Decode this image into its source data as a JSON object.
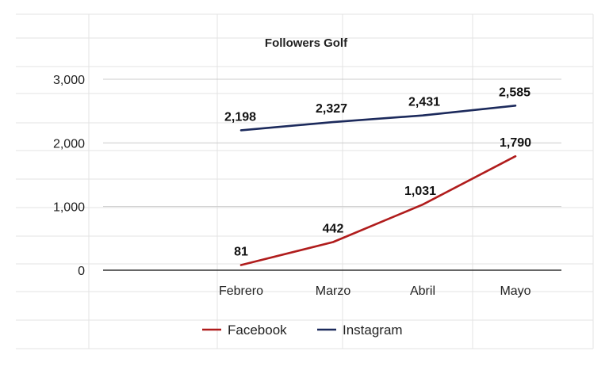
{
  "chart_data": {
    "type": "line",
    "title": "Followers Golf",
    "categories": [
      "Febrero",
      "Marzo",
      "Abril",
      "Mayo"
    ],
    "series": [
      {
        "name": "Facebook",
        "color": "#b01c1c",
        "values": [
          81,
          442,
          1031,
          1790
        ],
        "labels": [
          "81",
          "442",
          "1,031",
          "1,790"
        ]
      },
      {
        "name": "Instagram",
        "color": "#1c2a5c",
        "values": [
          2198,
          2327,
          2431,
          2585
        ],
        "labels": [
          "2,198",
          "2,327",
          "2,431",
          "2,585"
        ]
      }
    ],
    "yticks": [
      {
        "value": 0,
        "label": "0"
      },
      {
        "value": 1000,
        "label": "1,000"
      },
      {
        "value": 2000,
        "label": "2,000"
      },
      {
        "value": 3000,
        "label": "3,000"
      }
    ],
    "ylim": [
      0,
      3000
    ],
    "xlabel": "",
    "ylabel": "",
    "grid": true,
    "legend_position": "bottom"
  }
}
